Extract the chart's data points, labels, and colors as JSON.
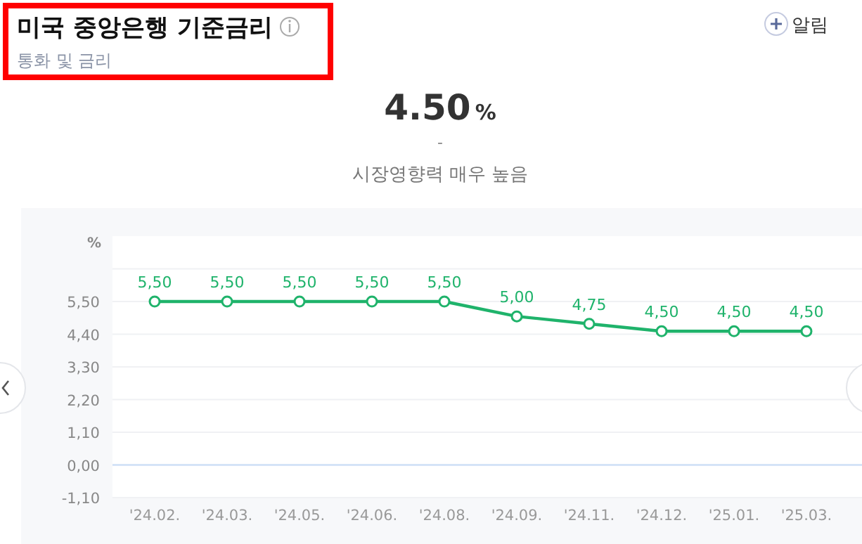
{
  "chart_data": {
    "type": "line",
    "title": "미국 중앙은행 기준금리",
    "subtitle": "통화 및 금리",
    "annotations": [
      "알림",
      "4.50%",
      "-",
      "시장영향력 매우 높음"
    ],
    "ylabel": "%",
    "categories": [
      "'24.02.",
      "'24.03.",
      "'24.05.",
      "'24.06.",
      "'24.08.",
      "'24.09.",
      "'24.11.",
      "'24.12.",
      "'25.01.",
      "'25.03."
    ],
    "series": [
      {
        "color": "#1fb36b",
        "values": [
          5.5,
          5.5,
          5.5,
          5.5,
          5.5,
          5.0,
          4.75,
          4.5,
          4.5,
          4.5
        ],
        "value_labels": [
          "5,50",
          "5,50",
          "5,50",
          "5,50",
          "5,50",
          "5,00",
          "4,75",
          "4,50",
          "4,50",
          "4,50"
        ]
      }
    ],
    "ylim": [
      -1.1,
      7.7
    ],
    "yticks": [
      {
        "value": -1.1,
        "label": "-1,10"
      },
      {
        "value": 0,
        "label": "0,00"
      },
      {
        "value": 1.1,
        "label": "1,10"
      },
      {
        "value": 2.2,
        "label": "2,20"
      },
      {
        "value": 3.3,
        "label": "3,30"
      },
      {
        "value": 4.4,
        "label": "4,40"
      },
      {
        "value": 5.5,
        "label": "5,50"
      },
      {
        "value": 6.6,
        "label": null
      }
    ],
    "ref_lines": [
      {
        "axis": "y",
        "value": 0,
        "color": "#cfe0f7"
      }
    ],
    "grid": "y",
    "marker": "circle",
    "line_style": "solid"
  }
}
